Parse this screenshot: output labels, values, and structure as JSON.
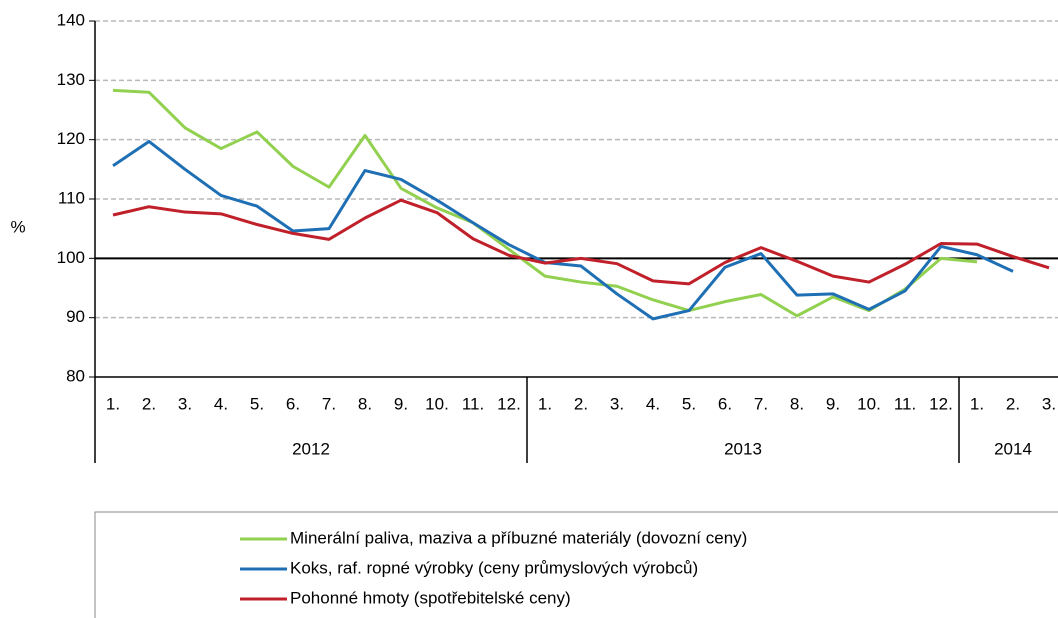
{
  "chart_data": {
    "type": "line",
    "y_label": "%",
    "categories": [
      "1.",
      "2.",
      "3.",
      "4.",
      "5.",
      "6.",
      "7.",
      "8.",
      "9.",
      "10.",
      "11.",
      "12.",
      "1.",
      "2.",
      "3.",
      "4.",
      "5.",
      "6.",
      "7.",
      "8.",
      "9.",
      "10.",
      "11.",
      "12.",
      "1.",
      "2.",
      "3."
    ],
    "groups": [
      "2012",
      "2013",
      "2014"
    ],
    "series": [
      {
        "name": "Minerální paliva, maziva a příbuzné materiály (dovozní ceny)",
        "color": "#92d050",
        "values": [
          128.3,
          128,
          122,
          118.5,
          121.3,
          115.5,
          112,
          120.7,
          111.8,
          108.5,
          106,
          101.5,
          97,
          96,
          95.3,
          93,
          91.2,
          92.7,
          93.9,
          90.3,
          93.5,
          91.2,
          94.8,
          100,
          99.4,
          null,
          null
        ]
      },
      {
        "name": "Koks, raf. ropné výrobky (ceny průmyslových výrobců)",
        "color": "#1f6fb4",
        "values": [
          115.6,
          119.7,
          115,
          110.6,
          108.8,
          104.6,
          105,
          114.8,
          113.3,
          109.8,
          106,
          102.3,
          99.3,
          98.7,
          94,
          89.8,
          91.2,
          98.5,
          100.8,
          93.8,
          94,
          91.4,
          94.5,
          102,
          100.6,
          97.8,
          null
        ]
      },
      {
        "name": "Pohonné hmoty (spotřebitelské ceny)",
        "color": "#c0202a",
        "values": [
          107.3,
          108.7,
          107.8,
          107.5,
          105.7,
          104.2,
          103.2,
          106.8,
          109.8,
          107.7,
          103.3,
          100.5,
          99.2,
          100,
          99.1,
          96.2,
          95.7,
          99.3,
          101.8,
          99.5,
          97,
          96,
          99,
          102.5,
          102.4,
          100.3,
          98.4
        ]
      }
    ],
    "reference_line": 100,
    "ylim": [
      80,
      140
    ],
    "yticks": [
      80,
      90,
      100,
      110,
      120,
      130,
      140
    ],
    "grid": true
  }
}
